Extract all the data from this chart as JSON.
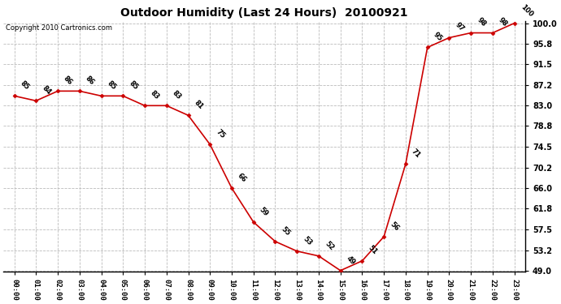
{
  "title": "Outdoor Humidity (Last 24 Hours)  20100921",
  "copyright": "Copyright 2010 Cartronics.com",
  "hours": [
    "00:00",
    "01:00",
    "02:00",
    "03:00",
    "04:00",
    "05:00",
    "06:00",
    "07:00",
    "08:00",
    "09:00",
    "10:00",
    "11:00",
    "12:00",
    "13:00",
    "14:00",
    "15:00",
    "16:00",
    "17:00",
    "18:00",
    "19:00",
    "20:00",
    "21:00",
    "22:00",
    "23:00"
  ],
  "values": [
    85,
    84,
    86,
    86,
    85,
    85,
    83,
    83,
    81,
    75,
    66,
    59,
    55,
    53,
    52,
    49,
    51,
    56,
    71,
    95,
    97,
    98,
    98,
    100
  ],
  "line_color": "#cc0000",
  "marker_color": "#cc0000",
  "bg_color": "#ffffff",
  "grid_color": "#bbbbbb",
  "ylim_min": 49.0,
  "ylim_max": 100.0,
  "yticks": [
    49.0,
    53.2,
    57.5,
    61.8,
    66.0,
    70.2,
    74.5,
    78.8,
    83.0,
    87.2,
    91.5,
    95.8,
    100.0
  ]
}
